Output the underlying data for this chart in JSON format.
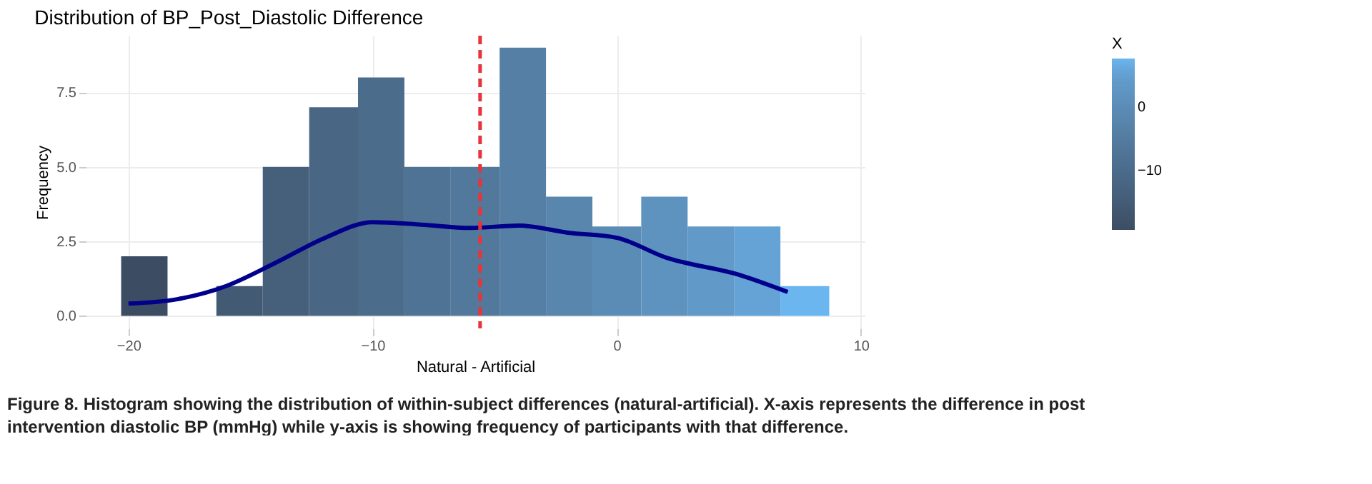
{
  "chart_data": {
    "type": "histogram",
    "title": "Distribution of BP_Post_Diastolic Difference",
    "xlabel": "Natural - Artificial",
    "ylabel": "Frequency",
    "bins": [
      -20.3,
      -18.4,
      -16.4,
      -14.5,
      -12.6,
      -10.6,
      -8.7,
      -6.8,
      -4.8,
      -2.9,
      -1.0,
      1.0,
      2.9,
      4.8,
      6.7,
      8.7
    ],
    "values": [
      2,
      0,
      1,
      5,
      7,
      8,
      5,
      5,
      9,
      4,
      3,
      4,
      3,
      3,
      1
    ],
    "colors": [
      "#3c4d63",
      "#40546c",
      "#435a74",
      "#46607c",
      "#496684",
      "#4c6c8c",
      "#4f7394",
      "#52799c",
      "#557fa4",
      "#5886ad",
      "#5b8cb6",
      "#5e93bf",
      "#6199c8",
      "#65a3d6",
      "#6bb6ef"
    ],
    "cticks": [
      -10,
      0
    ],
    "series": [
      {
        "type": "line",
        "line_style": "solid",
        "color": "#00008b",
        "x": [
          -20,
          -18,
          -16,
          -14,
          -12,
          -10,
          -8,
          -6,
          -4,
          -2,
          0,
          2,
          5,
          7
        ],
        "values": [
          0.41,
          0.56,
          1.0,
          1.77,
          2.6,
          3.14,
          3.06,
          2.95,
          3.03,
          2.79,
          2.62,
          1.96,
          1.38,
          0.8
        ]
      }
    ],
    "ref_lines": [
      {
        "axis": "x",
        "value": -5.6,
        "color": "#e8333a",
        "line_style": "dashed"
      }
    ],
    "xlim": [
      -21.75,
      10.15
    ],
    "xticks": [
      -20,
      -10,
      0,
      10
    ],
    "ylim": [
      -0.42,
      9.4
    ],
    "yticks": [
      {
        "value": 0,
        "label": "0.0"
      },
      {
        "value": 2.5,
        "label": "2.5"
      },
      {
        "value": 5,
        "label": "5.0"
      },
      {
        "value": 7.5,
        "label": "7.5"
      }
    ],
    "grid": true,
    "clabel": "X",
    "annotations": [
      "Figure 8. Histogram showing the distribution of within-subject differences (natural-artificial). X-axis represents the difference in post intervention diastolic BP (mmHg) while y-axis is showing frequency of participants with that difference."
    ]
  }
}
